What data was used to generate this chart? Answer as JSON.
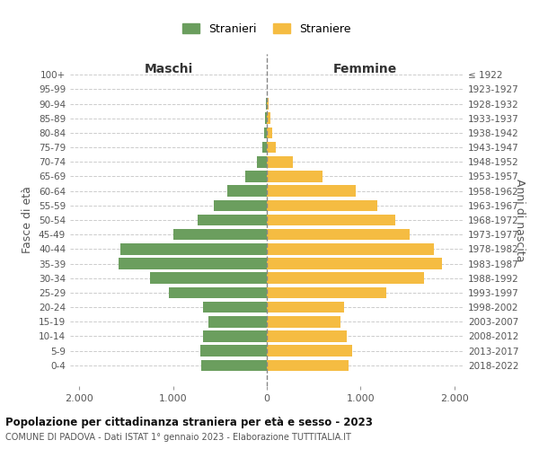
{
  "age_groups": [
    "100+",
    "95-99",
    "90-94",
    "85-89",
    "80-84",
    "75-79",
    "70-74",
    "65-69",
    "60-64",
    "55-59",
    "50-54",
    "45-49",
    "40-44",
    "35-39",
    "30-34",
    "25-29",
    "20-24",
    "15-19",
    "10-14",
    "5-9",
    "0-4"
  ],
  "birth_years": [
    "≤ 1922",
    "1923-1927",
    "1928-1932",
    "1933-1937",
    "1938-1942",
    "1943-1947",
    "1948-1952",
    "1953-1957",
    "1958-1962",
    "1963-1967",
    "1968-1972",
    "1973-1977",
    "1978-1982",
    "1983-1987",
    "1988-1992",
    "1993-1997",
    "1998-2002",
    "2003-2007",
    "2008-2012",
    "2013-2017",
    "2018-2022"
  ],
  "maschi": [
    3,
    2,
    8,
    18,
    30,
    50,
    110,
    230,
    420,
    570,
    740,
    1000,
    1560,
    1580,
    1250,
    1050,
    680,
    620,
    680,
    710,
    700
  ],
  "femmine": [
    3,
    3,
    15,
    35,
    55,
    95,
    280,
    590,
    950,
    1180,
    1370,
    1520,
    1780,
    1870,
    1680,
    1280,
    820,
    790,
    850,
    910,
    870
  ],
  "color_maschi": "#6b9e5e",
  "color_femmine": "#f5bc42",
  "title_main": "Popolazione per cittadinanza straniera per età e sesso - 2023",
  "title_sub": "COMUNE DI PADOVA - Dati ISTAT 1° gennaio 2023 - Elaborazione TUTTITALIA.IT",
  "label_maschi": "Stranieri",
  "label_femmine": "Straniere",
  "xlabel_left": "Maschi",
  "xlabel_right": "Femmine",
  "ylabel_left": "Fasce di età",
  "ylabel_right": "Anni di nascita",
  "xlim": 2100,
  "background_color": "#ffffff",
  "grid_color": "#cccccc"
}
